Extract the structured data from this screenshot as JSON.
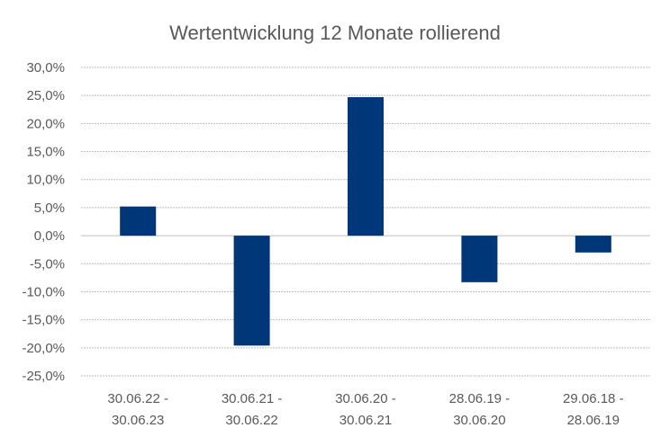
{
  "chart_data": {
    "type": "bar",
    "title": "Wertentwicklung 12 Monate rollierend",
    "categories": [
      [
        "30.06.22 -",
        "30.06.23"
      ],
      [
        "30.06.21 -",
        "30.06.22"
      ],
      [
        "30.06.20 -",
        "30.06.21"
      ],
      [
        "28.06.19 -",
        "30.06.20"
      ],
      [
        "29.06.18 -",
        "28.06.19"
      ]
    ],
    "series": [
      {
        "values": [
          5.2,
          -19.6,
          24.7,
          -8.3,
          -3.0
        ]
      }
    ],
    "ylim": [
      -25,
      30
    ],
    "y_ticks": [
      "30,0%",
      "25,0%",
      "20,0%",
      "15,0%",
      "10,0%",
      "5,0%",
      "0,0%",
      "-5,0%",
      "-10,0%",
      "-15,0%",
      "-20,0%",
      "-25,0%"
    ],
    "grid": true,
    "legend": "none",
    "colors": {
      "bar": "#003778",
      "grid": "#bfbfbf",
      "text": "#595959"
    }
  }
}
